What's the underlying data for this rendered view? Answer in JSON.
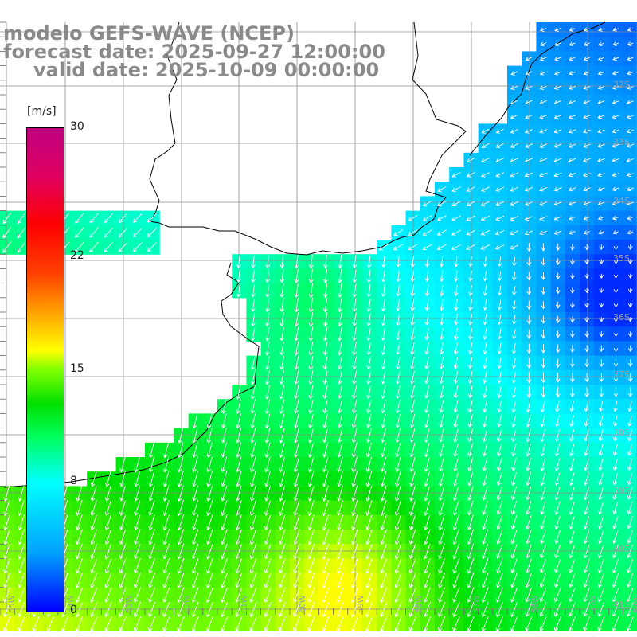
{
  "title": {
    "line1": "modelo GEFS-WAVE (NCEP)",
    "line2": "forecast date: 2025-09-27 12:00:00",
    "line3": "valid date: 2025-10-09 00:00:00"
  },
  "colorbar": {
    "unit": "[m/s]",
    "ticks": [
      "30",
      "22",
      "15",
      "8",
      "0"
    ],
    "tick_values": [
      30,
      22,
      15,
      8,
      0
    ],
    "range": [
      0,
      30
    ],
    "colors": [
      "#0000ff",
      "#00ffff",
      "#00e000",
      "#ffff00",
      "#ff0000",
      "#c00080"
    ]
  },
  "lat_labels": [
    "32S",
    "33S",
    "34S",
    "35S",
    "36S",
    "37S",
    "38S",
    "39S",
    "40S",
    "41S"
  ],
  "lon_labels": [
    "65W",
    "64W",
    "63W",
    "62W",
    "61W",
    "60W",
    "59W",
    "58W",
    "57W",
    "56W",
    "55W",
    "54W"
  ],
  "colors": {
    "land": "#ffffff",
    "grid": "#8c8c8c",
    "coast": "#000000",
    "arrows": "#ffffff",
    "title": "#8a8a8a"
  }
}
